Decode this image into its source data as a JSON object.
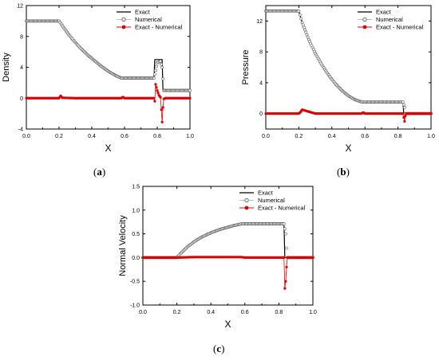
{
  "captions": {
    "a": "a",
    "b": "b",
    "c": "c"
  },
  "colors": {
    "exact": "#000000",
    "numerical": "#555555",
    "difference": "#e00000"
  },
  "chart_data": [
    {
      "id": "a",
      "type": "line",
      "xlabel": "X",
      "ylabel": "Density",
      "xlim": [
        0.0,
        1.0
      ],
      "ylim": [
        -4,
        12
      ],
      "xticks": [
        "0.0",
        "0.2",
        "0.4",
        "0.6",
        "0.8",
        "1.0"
      ],
      "xtick_values": [
        0.0,
        0.2,
        0.4,
        0.6,
        0.8,
        1.0
      ],
      "yticks": [
        "-4",
        "0",
        "4",
        "8",
        "12"
      ],
      "ytick_values": [
        -4,
        0,
        4,
        8,
        12
      ],
      "legend": {
        "position": "top-right",
        "entries": [
          "Exact",
          "Numerical",
          "Exact - Numerical"
        ]
      },
      "series": [
        {
          "name": "Exact",
          "style": "line",
          "x": [
            0.0,
            0.2,
            0.22,
            0.26,
            0.3,
            0.34,
            0.38,
            0.42,
            0.46,
            0.5,
            0.54,
            0.58,
            0.6,
            0.78,
            0.785,
            0.83,
            0.835,
            1.0
          ],
          "y": [
            10,
            10,
            9.4,
            8.2,
            7.2,
            6.3,
            5.5,
            4.8,
            4.1,
            3.5,
            3.0,
            2.6,
            2.6,
            2.6,
            5.0,
            5.0,
            1.0,
            1.0
          ]
        },
        {
          "name": "Numerical",
          "style": "markers",
          "x": [
            0.0,
            0.2,
            0.22,
            0.26,
            0.3,
            0.34,
            0.38,
            0.42,
            0.46,
            0.5,
            0.54,
            0.58,
            0.6,
            0.78,
            0.79,
            0.8,
            0.82,
            0.83,
            0.84,
            1.0
          ],
          "y": [
            10,
            10,
            9.4,
            8.2,
            7.2,
            6.3,
            5.5,
            4.8,
            4.1,
            3.5,
            3.0,
            2.6,
            2.6,
            2.6,
            3.6,
            4.6,
            4.8,
            4.0,
            1.0,
            1.0
          ]
        },
        {
          "name": "Exact - Numerical",
          "style": "line-markers",
          "x": [
            0.0,
            0.2,
            0.21,
            0.22,
            0.3,
            0.4,
            0.5,
            0.58,
            0.59,
            0.6,
            0.7,
            0.78,
            0.785,
            0.79,
            0.8,
            0.81,
            0.82,
            0.825,
            0.83,
            0.835,
            0.84,
            0.85,
            1.0
          ],
          "y": [
            0,
            0,
            0.3,
            0.05,
            0,
            0,
            0,
            0,
            0.15,
            0,
            0,
            0,
            -0.4,
            1.8,
            1.0,
            0.4,
            0.1,
            -1.5,
            -3.1,
            -1.2,
            -0.1,
            0,
            0
          ]
        }
      ]
    },
    {
      "id": "b",
      "type": "line",
      "xlabel": "X",
      "ylabel": "Pressure",
      "xlim": [
        0.0,
        1.0
      ],
      "ylim": [
        -2,
        14
      ],
      "xticks": [
        "0.0",
        "0.2",
        "0.4",
        "0.6",
        "0.8",
        "1.0"
      ],
      "xtick_values": [
        0.0,
        0.2,
        0.4,
        0.6,
        0.8,
        1.0
      ],
      "yticks": [
        "0",
        "4",
        "8",
        "12"
      ],
      "ytick_values": [
        0,
        4,
        8,
        12
      ],
      "legend": {
        "position": "top-right",
        "entries": [
          "Exact",
          "Numerical",
          "Exact - Numerical"
        ]
      },
      "series": [
        {
          "name": "Exact",
          "style": "line",
          "x": [
            0.0,
            0.2,
            0.22,
            0.26,
            0.3,
            0.34,
            0.38,
            0.42,
            0.46,
            0.5,
            0.54,
            0.58,
            0.6,
            0.83,
            0.835,
            1.0
          ],
          "y": [
            13.3,
            13.3,
            11.8,
            9.6,
            7.8,
            6.3,
            5.0,
            3.9,
            3.0,
            2.3,
            1.8,
            1.5,
            1.5,
            1.5,
            0,
            0
          ]
        },
        {
          "name": "Numerical",
          "style": "markers",
          "x": [
            0.0,
            0.2,
            0.22,
            0.26,
            0.3,
            0.34,
            0.38,
            0.42,
            0.46,
            0.5,
            0.54,
            0.58,
            0.6,
            0.83,
            0.84,
            0.845,
            1.0
          ],
          "y": [
            13.3,
            13.3,
            11.8,
            9.6,
            7.8,
            6.3,
            5.0,
            3.9,
            3.0,
            2.3,
            1.8,
            1.5,
            1.5,
            1.5,
            0.8,
            0,
            0
          ]
        },
        {
          "name": "Exact - Numerical",
          "style": "line-markers",
          "x": [
            0.0,
            0.2,
            0.21,
            0.22,
            0.3,
            0.4,
            0.5,
            0.58,
            0.59,
            0.6,
            0.7,
            0.8,
            0.83,
            0.835,
            0.84,
            0.845,
            0.85,
            1.0
          ],
          "y": [
            0,
            0,
            0.2,
            0.5,
            0,
            0,
            0,
            0,
            0.15,
            0,
            0,
            0,
            0,
            -0.5,
            -1.0,
            -0.3,
            0,
            0
          ]
        }
      ]
    },
    {
      "id": "c",
      "type": "line",
      "xlabel": "X",
      "ylabel": "Normal Velocity",
      "xlim": [
        0.0,
        1.0
      ],
      "ylim": [
        -1.0,
        1.5
      ],
      "xticks": [
        "0.0",
        "0.2",
        "0.4",
        "0.6",
        "0.8",
        "1.0"
      ],
      "xtick_values": [
        0.0,
        0.2,
        0.4,
        0.6,
        0.8,
        1.0
      ],
      "yticks": [
        "-1.0",
        "-0.5",
        "0.0",
        "0.5",
        "1.0",
        "1.5"
      ],
      "ytick_values": [
        -1.0,
        -0.5,
        0.0,
        0.5,
        1.0,
        1.5
      ],
      "legend": {
        "position": "top-right",
        "entries": [
          "Exact",
          "Numerical",
          "Exact - Numerical"
        ]
      },
      "series": [
        {
          "name": "Exact",
          "style": "line",
          "x": [
            0.0,
            0.2,
            0.22,
            0.26,
            0.3,
            0.34,
            0.38,
            0.42,
            0.46,
            0.5,
            0.54,
            0.58,
            0.6,
            0.83,
            0.835,
            1.0
          ],
          "y": [
            0,
            0,
            0.08,
            0.22,
            0.33,
            0.42,
            0.49,
            0.55,
            0.6,
            0.64,
            0.68,
            0.71,
            0.71,
            0.71,
            0,
            0
          ]
        },
        {
          "name": "Numerical",
          "style": "markers",
          "x": [
            0.0,
            0.2,
            0.22,
            0.26,
            0.3,
            0.34,
            0.38,
            0.42,
            0.46,
            0.5,
            0.54,
            0.58,
            0.6,
            0.83,
            0.84,
            0.845,
            0.85,
            1.0
          ],
          "y": [
            0,
            0,
            0.08,
            0.22,
            0.33,
            0.42,
            0.49,
            0.55,
            0.6,
            0.64,
            0.68,
            0.71,
            0.71,
            0.71,
            0.5,
            0.2,
            0,
            0
          ]
        },
        {
          "name": "Exact - Numerical",
          "style": "line-markers",
          "x": [
            0.0,
            0.2,
            0.3,
            0.4,
            0.5,
            0.58,
            0.6,
            0.7,
            0.8,
            0.83,
            0.835,
            0.84,
            0.845,
            0.85,
            1.0
          ],
          "y": [
            0,
            0,
            0.01,
            0.01,
            0.01,
            0.01,
            0,
            0,
            0,
            0,
            -0.65,
            -0.5,
            -0.2,
            0,
            0
          ]
        }
      ]
    }
  ]
}
